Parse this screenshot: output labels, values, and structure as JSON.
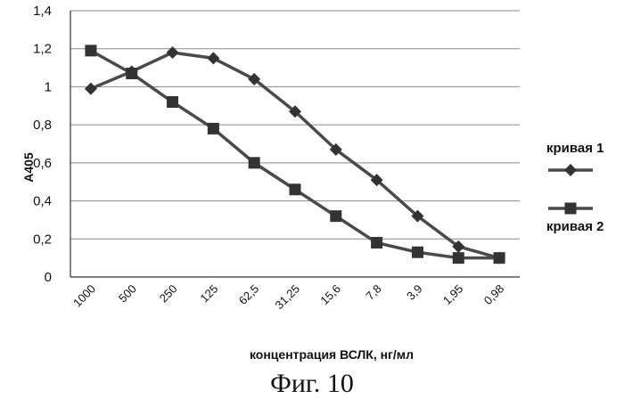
{
  "caption": "Фиг. 10",
  "chart_data": {
    "type": "line",
    "xlabel": "концентрация ВСЛК, нг/мл",
    "ylabel": "A405",
    "categories": [
      "1000",
      "500",
      "250",
      "125",
      "62,5",
      "31,25",
      "15,6",
      "7,8",
      "3,9",
      "1,95",
      "0,98"
    ],
    "y_tick_labels": [
      "0",
      "0,2",
      "0,4",
      "0,6",
      "0,8",
      "1",
      "1,2",
      "1,4"
    ],
    "ylim": [
      0,
      1.4
    ],
    "grid": true,
    "legend_position": "right",
    "series": [
      {
        "name": "кривая 1",
        "marker": "diamond",
        "color": "#4a4a4a",
        "values": [
          0.99,
          1.08,
          1.18,
          1.15,
          1.04,
          0.87,
          0.67,
          0.51,
          0.32,
          0.16,
          0.1
        ]
      },
      {
        "name": "кривая 2",
        "marker": "square",
        "color": "#4a4a4a",
        "values": [
          1.19,
          1.07,
          0.92,
          0.78,
          0.6,
          0.46,
          0.32,
          0.18,
          0.13,
          0.1,
          0.1
        ]
      }
    ]
  }
}
